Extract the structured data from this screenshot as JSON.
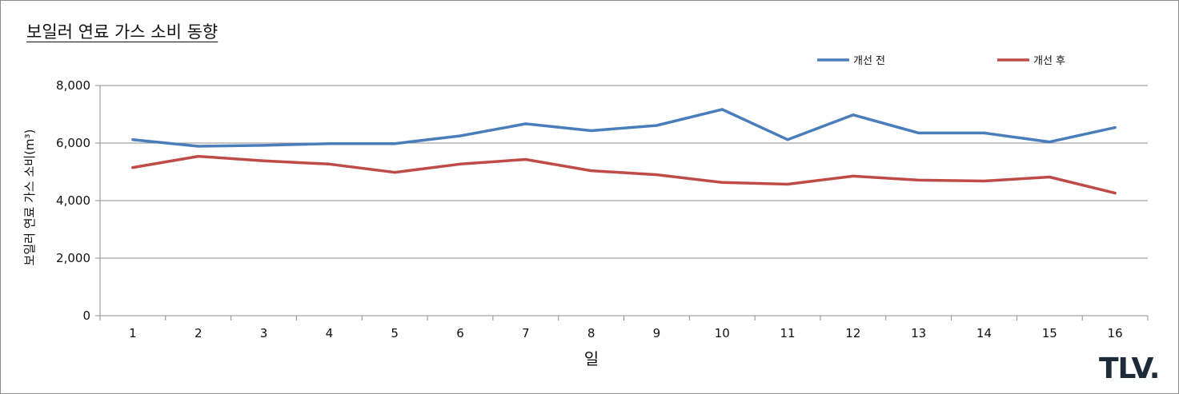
{
  "header": {
    "logo": "TLV."
  },
  "chart_data": {
    "type": "line",
    "title": "보일러 연료 가스 소비 동향",
    "xlabel": "일",
    "ylabel": "보일러 연료 가스 소비(m³)",
    "categories": [
      "1",
      "2",
      "3",
      "4",
      "5",
      "6",
      "7",
      "8",
      "9",
      "10",
      "11",
      "12",
      "13",
      "14",
      "15",
      "16"
    ],
    "ylim": [
      0,
      8000
    ],
    "yticks": [
      0,
      2000,
      4000,
      6000,
      8000
    ],
    "ytick_labels": [
      "0",
      "2,000",
      "4,000",
      "6,000",
      "8,000"
    ],
    "grid": true,
    "legend_position": "top-right",
    "series": [
      {
        "name": "개선 전",
        "color": "#4a7ebb",
        "values": [
          6120,
          5890,
          5920,
          5980,
          5980,
          6250,
          6670,
          6430,
          6610,
          7170,
          6120,
          6980,
          6350,
          6350,
          6040,
          6540
        ]
      },
      {
        "name": "개선 후",
        "color": "#be4b48",
        "values": [
          5150,
          5540,
          5380,
          5270,
          4980,
          5270,
          5430,
          5040,
          4900,
          4630,
          4570,
          4850,
          4710,
          4680,
          4820,
          4260
        ]
      }
    ]
  }
}
